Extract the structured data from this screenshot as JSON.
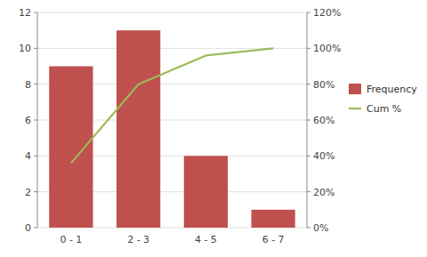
{
  "chart_data": {
    "type": "bar",
    "categories": [
      "0 - 1",
      "2 - 3",
      "4 - 5",
      "6 - 7"
    ],
    "series": [
      {
        "name": "Frequency",
        "type": "bar",
        "color": "#C0504D",
        "values": [
          9,
          11,
          4,
          1
        ]
      },
      {
        "name": "Cum %",
        "type": "line",
        "color": "#9BBB59",
        "axis": "y2",
        "values": [
          0.36,
          0.8,
          0.96,
          1.0
        ]
      }
    ],
    "ylim": [
      0,
      12
    ],
    "yticks": [
      0,
      2,
      4,
      6,
      8,
      10,
      12
    ],
    "y2lim": [
      0,
      1.2
    ],
    "y2ticks": [
      {
        "value": 0,
        "label": "0%"
      },
      {
        "value": 0.2,
        "label": "20%"
      },
      {
        "value": 0.4,
        "label": "40%"
      },
      {
        "value": 0.6,
        "label": "60%"
      },
      {
        "value": 0.8,
        "label": "80%"
      },
      {
        "value": 1.0,
        "label": "100%"
      },
      {
        "value": 1.2,
        "label": "120%"
      }
    ],
    "grid": true,
    "legend": "right"
  }
}
